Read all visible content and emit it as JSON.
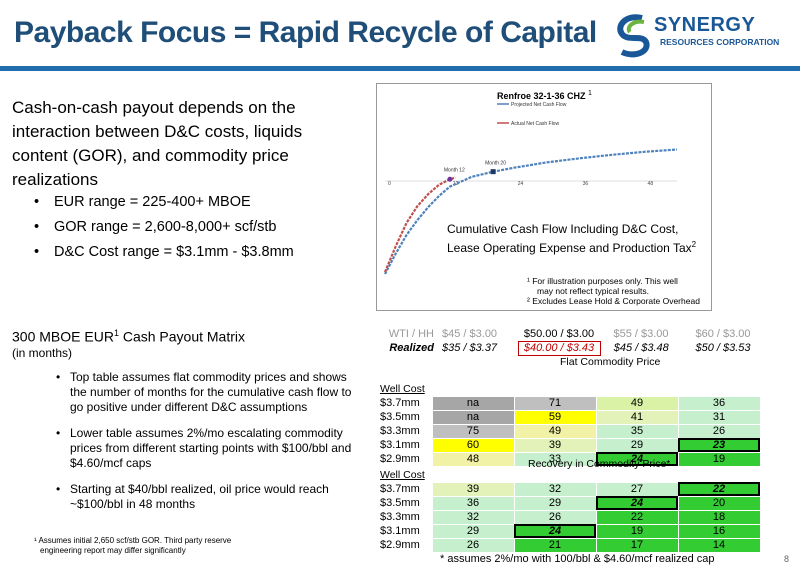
{
  "slide": {
    "title": "Payback Focus = Rapid Recycle of Capital",
    "page": "8",
    "logo_name": "SYNERGY",
    "logo_sub": "RESOURCES CORPORATION"
  },
  "intro": {
    "text": "Cash-on-cash payout depends on the interaction between D&C costs, liquids content (GOR), and commodity price realizations",
    "bullets": [
      "EUR range = 225-400+ MBOE",
      "GOR range = 2,600-8,000+ scf/stb",
      "D&C Cost range = $3.1mm - $3.8mm"
    ]
  },
  "chart_data": {
    "type": "line",
    "title": "Renfroe 32-1-36 CHZ",
    "title_sup": "1",
    "legend": [
      "Projected Net Cash Flow",
      "Actual Net Cash Flow"
    ],
    "x_ticks": [
      "0",
      "12",
      "24",
      "36",
      "48"
    ],
    "annotations": [
      "Month 12",
      "Month 20"
    ],
    "series": [
      {
        "name": "Projected Net Cash Flow",
        "color": "#4f81bd",
        "x": [
          0,
          2,
          4,
          6,
          8,
          10,
          12,
          16,
          20,
          24,
          30,
          36,
          42,
          48,
          54
        ],
        "y": [
          -100,
          -78,
          -58,
          -42,
          -28,
          -16,
          -6,
          7,
          16,
          23,
          32,
          39,
          45,
          50,
          54
        ]
      },
      {
        "name": "Actual Net Cash Flow",
        "color": "#c0504d",
        "x": [
          0,
          2,
          4,
          6,
          8,
          10,
          12,
          13
        ],
        "y": [
          -98,
          -70,
          -45,
          -27,
          -14,
          -4,
          3,
          6
        ]
      }
    ],
    "caption": "Cumulative Cash Flow Including D&C Cost, Lease Operating Expense and Production Tax",
    "caption_sup": "2",
    "footnotes": [
      "¹ For illustration purposes only.  This well",
      "may not reflect typical results.",
      "² Excludes Lease Hold & Corporate Overhead"
    ]
  },
  "matrix": {
    "title": "300 MBOE EUR",
    "title_sup": "1",
    "title_tail": " Cash Payout Matrix",
    "subtitle": "(in months)",
    "notes": [
      "Top table assumes flat commodity prices and shows the number of months for the cumulative cash flow to go positive under different D&C assumptions",
      "Lower table assumes 2%/mo escalating commodity prices from different starting points with $100/bbl and $4.60/mcf caps",
      "Starting at $40/bbl realized, oil price would reach ~$100/bbl in 48 months"
    ],
    "footnote1": "¹  Assumes initial 2,650 scf/stb GOR. Third party reserve",
    "footnote2": "engineering report may differ significantly",
    "wti_label": "WTI / HH",
    "realized_label": "Realized",
    "wti": [
      "$45 / $3.00",
      "$50.00 / $3.00",
      "$55 / $3.00",
      "$60 / $3.00"
    ],
    "realized": [
      "$35 / $3.37",
      "$40.00 / $3.43",
      "$45 / $3.48",
      "$50 / $3.53"
    ],
    "flat_title": "Flat Commodity Price",
    "recovery_title": "Recovery in Commodity Price*",
    "well_cost_label": "Well Cost",
    "flat_rows": [
      {
        "cost": "$3.7mm",
        "vals": [
          "na",
          "71",
          "49",
          "36"
        ]
      },
      {
        "cost": "$3.5mm",
        "vals": [
          "na",
          "59",
          "41",
          "31"
        ]
      },
      {
        "cost": "$3.3mm",
        "vals": [
          "75",
          "49",
          "35",
          "26"
        ]
      },
      {
        "cost": "$3.1mm",
        "vals": [
          "60",
          "39",
          "29",
          "23"
        ]
      },
      {
        "cost": "$2.9mm",
        "vals": [
          "48",
          "33",
          "24",
          "19"
        ]
      }
    ],
    "recovery_rows": [
      {
        "cost": "$3.7mm",
        "vals": [
          "39",
          "32",
          "27",
          "22"
        ]
      },
      {
        "cost": "$3.5mm",
        "vals": [
          "36",
          "29",
          "24",
          "20"
        ]
      },
      {
        "cost": "$3.3mm",
        "vals": [
          "32",
          "26",
          "22",
          "18"
        ]
      },
      {
        "cost": "$3.1mm",
        "vals": [
          "29",
          "24",
          "19",
          "16"
        ]
      },
      {
        "cost": "$2.9mm",
        "vals": [
          "26",
          "21",
          "17",
          "14"
        ]
      }
    ],
    "assumption": "* assumes 2%/mo with 100/bbl & $4.60/mcf realized cap"
  }
}
